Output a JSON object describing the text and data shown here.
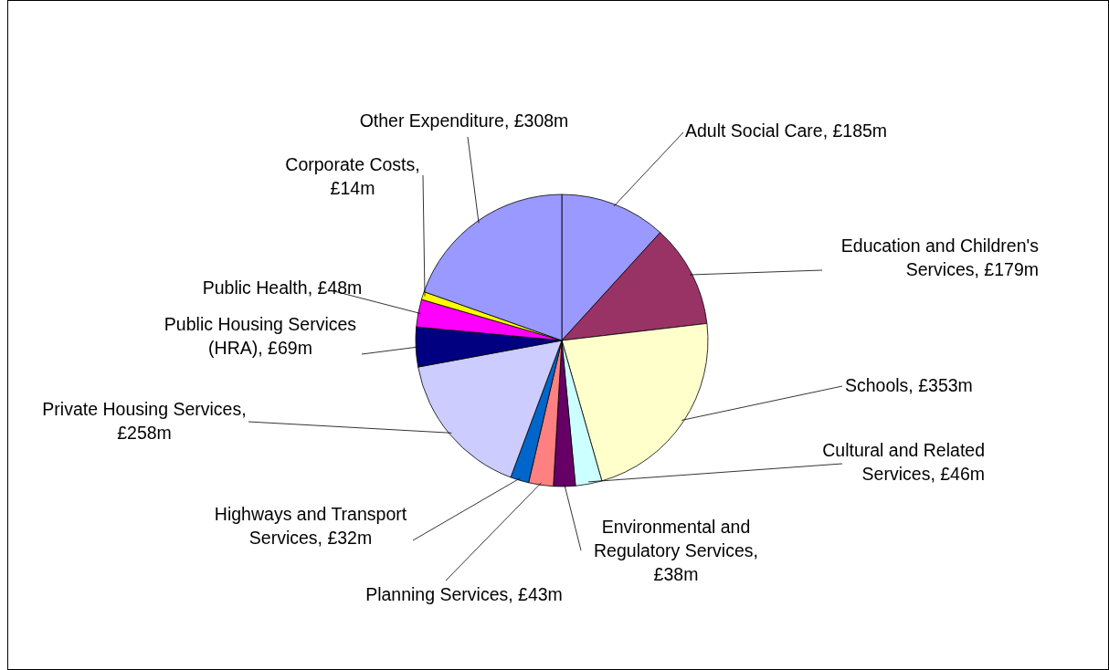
{
  "chart_data": {
    "type": "pie",
    "categories": [
      "Adult Social Care, £185m",
      "Education and Children's Services, £179m",
      "Schools, £353m",
      "Cultural and Related Services, £46m",
      "Environmental and Regulatory Services, £38m",
      "Planning Services, £43m",
      "Highways and Transport Services, £32m",
      "Private Housing Services, £258m",
      "Public Housing Services (HRA), £69m",
      "Public Health, £48m",
      "Corporate Costs, £14m",
      "Other Expenditure, £308m"
    ],
    "values": [
      185,
      179,
      353,
      46,
      38,
      43,
      32,
      258,
      69,
      48,
      14,
      308
    ],
    "colors": [
      "#9999ff",
      "#993366",
      "#ffffcc",
      "#ccffff",
      "#660066",
      "#ff8080",
      "#0066cc",
      "#ccccff",
      "#000080",
      "#ff00ff",
      "#ffff00",
      "#9999ff"
    ]
  }
}
